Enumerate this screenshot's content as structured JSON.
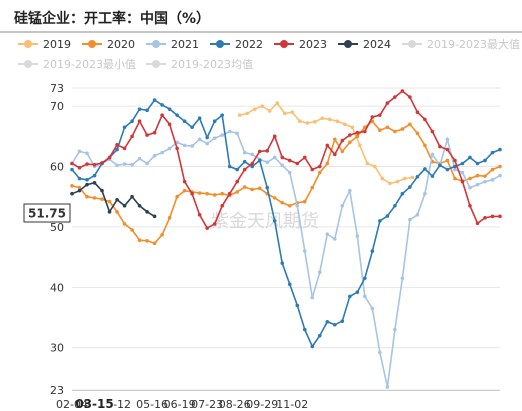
{
  "title": "硅锰企业：开工率：中国（%）",
  "watermark": "紫金天风期货",
  "last_value_label": "51.75",
  "chart_data": {
    "type": "line",
    "title": "硅锰企业：开工率：中国（%）",
    "xlabel": "",
    "ylabel": "",
    "ylim": [
      23,
      73
    ],
    "y_ticks": [
      23,
      30,
      40,
      50,
      60,
      70,
      73
    ],
    "x_ticks": [
      "02-04",
      "03-15",
      "-12",
      "05-16",
      "06-19",
      "07-23",
      "08-26",
      "09-29",
      "11-02"
    ],
    "highlight_x_tick": "03-15",
    "grid": "horizontal",
    "legend_position": "top",
    "series": [
      {
        "name": "2019",
        "color": "#fbbf73",
        "points": [
          [
            33.5,
            68.5
          ],
          [
            35,
            68.8
          ],
          [
            36.5,
            69.5
          ],
          [
            38,
            70
          ],
          [
            39.5,
            69.2
          ],
          [
            41,
            70.5
          ],
          [
            42.5,
            68.8
          ],
          [
            44,
            69
          ],
          [
            45.5,
            67.5
          ],
          [
            47,
            67.2
          ],
          [
            48.5,
            67.4
          ],
          [
            50,
            68
          ],
          [
            51.5,
            67.8
          ],
          [
            53,
            67.5
          ],
          [
            54.5,
            67
          ],
          [
            56,
            66.5
          ],
          [
            57.5,
            63.5
          ],
          [
            59,
            60.5
          ],
          [
            60.5,
            60
          ],
          [
            62,
            58
          ],
          [
            63.5,
            57.2
          ],
          [
            65,
            57.5
          ],
          [
            66.5,
            58
          ],
          [
            68,
            58.2
          ]
        ]
      },
      {
        "name": "2020",
        "color": "#f28e2b",
        "points": [
          [
            0,
            56.8
          ],
          [
            1.5,
            56.5
          ],
          [
            3,
            55
          ],
          [
            4.5,
            54.8
          ],
          [
            6,
            54.6
          ],
          [
            7.5,
            54.2
          ],
          [
            9,
            52.5
          ],
          [
            10.5,
            50.5
          ],
          [
            12,
            49.5
          ],
          [
            13.5,
            47.8
          ],
          [
            15,
            47.7
          ],
          [
            16.5,
            47.3
          ],
          [
            18,
            48.7
          ],
          [
            19.5,
            51.5
          ],
          [
            21,
            55
          ],
          [
            22.5,
            56
          ],
          [
            24,
            55.8
          ],
          [
            25.5,
            55.6
          ],
          [
            27,
            55.5
          ],
          [
            28.5,
            55.3
          ],
          [
            30,
            55.5
          ],
          [
            31.5,
            55.2
          ],
          [
            33,
            55.8
          ],
          [
            34.5,
            56.6
          ],
          [
            36,
            56.2
          ],
          [
            37.5,
            56.4
          ],
          [
            39,
            55.5
          ],
          [
            40.5,
            54.8
          ],
          [
            42,
            54
          ],
          [
            43.5,
            53.5
          ],
          [
            45,
            54
          ],
          [
            46.5,
            54.2
          ],
          [
            48,
            56.5
          ],
          [
            49.5,
            59
          ],
          [
            51,
            60.5
          ],
          [
            52.5,
            64.5
          ],
          [
            54,
            62.5
          ],
          [
            55.5,
            64
          ],
          [
            57,
            65
          ],
          [
            58.5,
            66.5
          ],
          [
            60,
            67.5
          ],
          [
            61.5,
            66
          ],
          [
            63,
            66.5
          ],
          [
            64.5,
            65.8
          ],
          [
            66,
            66.2
          ],
          [
            67.5,
            67
          ],
          [
            69,
            65.5
          ],
          [
            70.5,
            63.5
          ],
          [
            72,
            60.8
          ],
          [
            73.5,
            60.5
          ],
          [
            75,
            61
          ],
          [
            76.5,
            58
          ],
          [
            78,
            57.6
          ],
          [
            79.5,
            58
          ],
          [
            81,
            58.5
          ],
          [
            82.5,
            58.4
          ],
          [
            84,
            59.5
          ],
          [
            85.5,
            60
          ]
        ]
      },
      {
        "name": "2021",
        "color": "#a6c4e4",
        "points": [
          [
            0,
            60.5
          ],
          [
            1.5,
            62.5
          ],
          [
            3,
            62.2
          ],
          [
            4.5,
            60
          ],
          [
            6,
            60.5
          ],
          [
            7.5,
            61.2
          ],
          [
            9,
            60.2
          ],
          [
            10.5,
            60.4
          ],
          [
            12,
            60.3
          ],
          [
            13.5,
            61.3
          ],
          [
            15,
            60.5
          ],
          [
            16.5,
            61.8
          ],
          [
            18,
            62.3
          ],
          [
            19.5,
            63
          ],
          [
            21,
            64
          ],
          [
            22.5,
            63.5
          ],
          [
            24,
            63.4
          ],
          [
            25.5,
            64.5
          ],
          [
            27,
            63.8
          ],
          [
            28.5,
            64.7
          ],
          [
            30,
            65.2
          ],
          [
            31.5,
            65.8
          ],
          [
            33,
            65.5
          ],
          [
            34.5,
            62.3
          ],
          [
            36,
            62
          ],
          [
            37.5,
            61.2
          ],
          [
            39,
            60.7
          ],
          [
            40.5,
            61.5
          ],
          [
            42,
            60.2
          ],
          [
            43.5,
            59
          ],
          [
            45,
            53.5
          ],
          [
            46.5,
            46
          ],
          [
            48,
            38.3
          ],
          [
            49.5,
            42.5
          ],
          [
            51,
            48.8
          ],
          [
            52.5,
            48
          ],
          [
            54,
            53.5
          ],
          [
            55.5,
            56
          ],
          [
            57,
            48.5
          ],
          [
            58.5,
            38.5
          ],
          [
            60,
            36.5
          ],
          [
            61.5,
            29.2
          ],
          [
            63,
            23.5
          ],
          [
            64.5,
            33
          ],
          [
            66,
            41.5
          ],
          [
            67.5,
            51.2
          ],
          [
            69,
            52
          ],
          [
            70.5,
            55.5
          ],
          [
            72,
            62
          ],
          [
            73.5,
            60.2
          ],
          [
            75,
            64.5
          ],
          [
            76.5,
            59.5
          ],
          [
            78,
            59
          ],
          [
            79.5,
            56.5
          ],
          [
            81,
            57
          ],
          [
            82.5,
            57.5
          ],
          [
            84,
            57.8
          ],
          [
            85.5,
            58.5
          ]
        ]
      },
      {
        "name": "2022",
        "color": "#2c7bb6",
        "points": [
          [
            0,
            59.5
          ],
          [
            1.5,
            58
          ],
          [
            3,
            57.8
          ],
          [
            4.5,
            58.5
          ],
          [
            6,
            60.5
          ],
          [
            7.5,
            61.5
          ],
          [
            9,
            62.8
          ],
          [
            10.5,
            66.5
          ],
          [
            12,
            67.5
          ],
          [
            13.5,
            69.5
          ],
          [
            15,
            69.3
          ],
          [
            16.5,
            71
          ],
          [
            18,
            70.2
          ],
          [
            19.5,
            69.5
          ],
          [
            21,
            68.5
          ],
          [
            22.5,
            67.5
          ],
          [
            24,
            66.5
          ],
          [
            25.5,
            68
          ],
          [
            27,
            64.8
          ],
          [
            28.5,
            67.5
          ],
          [
            30,
            68.5
          ],
          [
            31.5,
            60
          ],
          [
            33,
            59.5
          ],
          [
            34.5,
            60.8
          ],
          [
            36,
            60
          ],
          [
            37.5,
            61
          ],
          [
            39,
            56.5
          ],
          [
            40.5,
            51
          ],
          [
            42,
            44
          ],
          [
            43.5,
            40.5
          ],
          [
            45,
            37
          ],
          [
            46.5,
            33
          ],
          [
            48,
            30.2
          ],
          [
            49.5,
            32
          ],
          [
            51,
            34.3
          ],
          [
            52.5,
            33.8
          ],
          [
            54,
            34.4
          ],
          [
            55.5,
            38.5
          ],
          [
            57,
            39.2
          ],
          [
            58.5,
            41.5
          ],
          [
            60,
            46
          ],
          [
            61.5,
            51
          ],
          [
            63,
            51.8
          ],
          [
            64.5,
            53.5
          ],
          [
            66,
            55.5
          ],
          [
            67.5,
            56.6
          ],
          [
            69,
            58.3
          ],
          [
            70.5,
            59.6
          ],
          [
            72,
            58.4
          ],
          [
            73.5,
            60.2
          ],
          [
            75,
            59.5
          ],
          [
            76.5,
            60
          ],
          [
            78,
            60.5
          ],
          [
            79.5,
            61.5
          ],
          [
            81,
            60.5
          ],
          [
            82.5,
            61
          ],
          [
            84,
            62.3
          ],
          [
            85.5,
            62.8
          ]
        ]
      },
      {
        "name": "2023",
        "color": "#d1363a",
        "points": [
          [
            0,
            60.5
          ],
          [
            1.5,
            59.8
          ],
          [
            3,
            60.4
          ],
          [
            4.5,
            60.3
          ],
          [
            6,
            60.6
          ],
          [
            7.5,
            61.5
          ],
          [
            9,
            63.6
          ],
          [
            10.5,
            63
          ],
          [
            12,
            65
          ],
          [
            13.5,
            67.5
          ],
          [
            15,
            65.2
          ],
          [
            16.5,
            65.6
          ],
          [
            18,
            68.5
          ],
          [
            19.5,
            67
          ],
          [
            21,
            63
          ],
          [
            22.5,
            57.5
          ],
          [
            24,
            55.5
          ],
          [
            25.5,
            52
          ],
          [
            27,
            49.8
          ],
          [
            28.5,
            50.5
          ],
          [
            30,
            53.5
          ],
          [
            31.5,
            55.5
          ],
          [
            33,
            57.5
          ],
          [
            34.5,
            59.5
          ],
          [
            36,
            60.5
          ],
          [
            37.5,
            62.5
          ],
          [
            39,
            62.6
          ],
          [
            40.5,
            65
          ],
          [
            42,
            61.5
          ],
          [
            43.5,
            61
          ],
          [
            45,
            60.5
          ],
          [
            46.5,
            61.5
          ],
          [
            48,
            59.5
          ],
          [
            49.5,
            60
          ],
          [
            51,
            63.5
          ],
          [
            52.5,
            62
          ],
          [
            54,
            64.3
          ],
          [
            55.5,
            65.2
          ],
          [
            57,
            65.6
          ],
          [
            58.5,
            65.8
          ],
          [
            60,
            68.2
          ],
          [
            61.5,
            68.5
          ],
          [
            63,
            70.5
          ],
          [
            64.5,
            71.5
          ],
          [
            66,
            72.5
          ],
          [
            67.5,
            71.5
          ],
          [
            69,
            69
          ],
          [
            70.5,
            67.8
          ],
          [
            72,
            65.8
          ],
          [
            73.5,
            63.3
          ],
          [
            75,
            62.8
          ],
          [
            76.5,
            61
          ],
          [
            78,
            57.5
          ],
          [
            79.5,
            53.5
          ],
          [
            81,
            50.6
          ],
          [
            82.5,
            51.5
          ],
          [
            84,
            51.75
          ],
          [
            85.5,
            51.75
          ]
        ]
      },
      {
        "name": "2024",
        "color": "#2e4153",
        "points": [
          [
            0,
            55.5
          ],
          [
            1.5,
            56
          ],
          [
            3,
            57
          ],
          [
            4.5,
            57.3
          ],
          [
            6,
            56
          ],
          [
            7.5,
            52.5
          ],
          [
            9,
            54.5
          ],
          [
            10.5,
            53.5
          ],
          [
            12,
            55
          ],
          [
            13.5,
            53.5
          ],
          [
            15,
            52.5
          ],
          [
            16.5,
            51.75
          ]
        ]
      },
      {
        "name": "2019-2023最大值",
        "color": "#d9d9d9",
        "points": []
      },
      {
        "name": "2019-2023最小值",
        "color": "#d9d9d9",
        "points": []
      },
      {
        "name": "2019-2023均值",
        "color": "#d9d9d9",
        "points": []
      }
    ]
  }
}
